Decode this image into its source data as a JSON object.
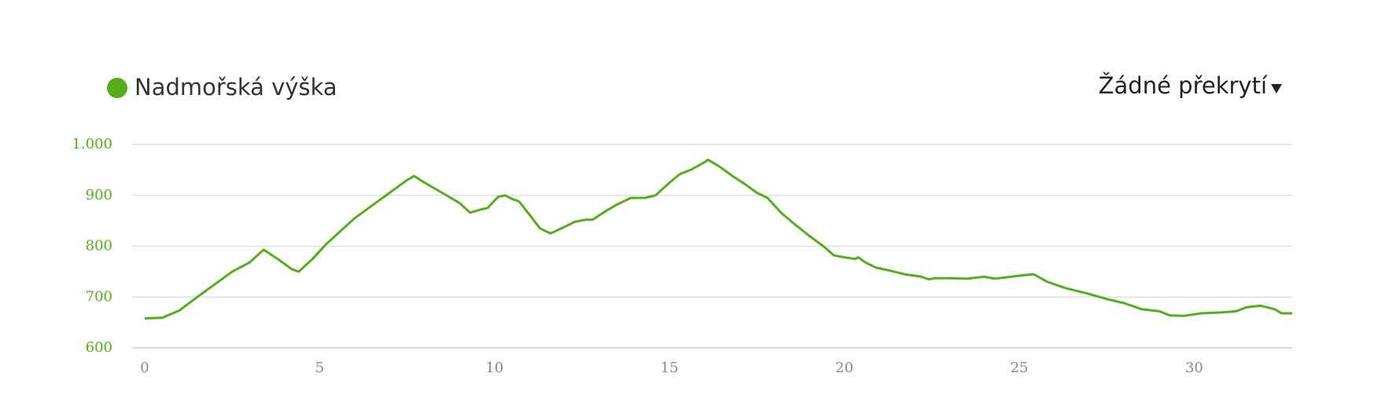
{
  "chart_data": {
    "type": "line",
    "x": [
      0,
      0.5,
      1.0,
      1.5,
      2.0,
      2.5,
      3.0,
      3.4,
      3.8,
      4.2,
      4.4,
      4.8,
      5.2,
      5.6,
      6.0,
      6.5,
      7.0,
      7.5,
      7.7,
      8.0,
      8.5,
      9.0,
      9.3,
      9.6,
      9.8,
      10.1,
      10.3,
      10.5,
      10.7,
      11.0,
      11.3,
      11.6,
      12.0,
      12.3,
      12.6,
      12.8,
      13.2,
      13.5,
      13.9,
      14.3,
      14.6,
      15.0,
      15.3,
      15.6,
      16.0,
      16.1,
      16.4,
      16.8,
      17.2,
      17.5,
      17.8,
      18.2,
      18.6,
      19.0,
      19.4,
      19.7,
      20.0,
      20.3,
      20.4,
      20.6,
      20.9,
      21.3,
      21.7,
      22.2,
      22.4,
      22.6,
      23.0,
      23.5,
      24.0,
      24.3,
      25.0,
      25.4,
      25.8,
      26.3,
      27.0,
      27.5,
      28.0,
      28.5,
      29.0,
      29.3,
      29.7,
      30.2,
      30.8,
      31.2,
      31.5,
      31.9,
      32.3,
      32.5,
      32.8
    ],
    "series": [
      {
        "name": "Nadmořská výška",
        "color": "#56ad1c",
        "values": [
          658,
          659,
          674,
          700,
          725,
          750,
          768,
          793,
          775,
          755,
          750,
          775,
          805,
          830,
          855,
          880,
          905,
          930,
          938,
          925,
          905,
          885,
          866,
          872,
          875,
          897,
          900,
          893,
          888,
          862,
          835,
          825,
          838,
          848,
          852,
          852,
          870,
          882,
          895,
          895,
          900,
          925,
          942,
          950,
          965,
          970,
          958,
          938,
          920,
          905,
          895,
          865,
          842,
          820,
          800,
          782,
          778,
          775,
          778,
          768,
          758,
          752,
          745,
          740,
          735,
          737,
          737,
          736,
          740,
          736,
          742,
          745,
          730,
          718,
          706,
          696,
          688,
          676,
          672,
          664,
          663,
          668,
          670,
          672,
          680,
          683,
          676,
          668,
          668
        ]
      }
    ],
    "xlim": [
      0,
      32.8
    ],
    "ylim": [
      600,
      1000
    ],
    "xticks": [
      0,
      5,
      10,
      15,
      20,
      25,
      30
    ],
    "yticks": [
      600,
      700,
      800,
      900,
      {
        "value": 1000,
        "label": "1.000"
      }
    ],
    "grid": true,
    "overlay_selector": "Žádné překrytí"
  }
}
